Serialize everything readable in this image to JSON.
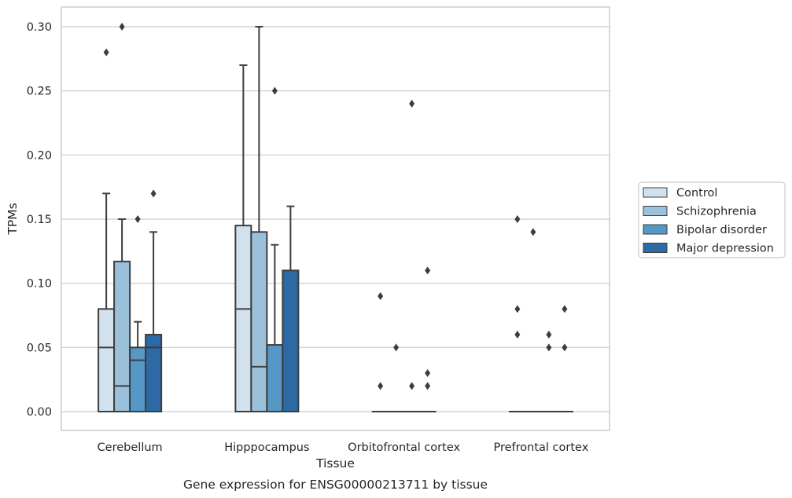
{
  "chart_data": {
    "type": "box",
    "title": "",
    "caption": "Gene expression for ENSG00000213711 by tissue",
    "xlabel": "Tissue",
    "ylabel": "TPMs",
    "ylim": [
      -0.015,
      0.315
    ],
    "yticks": [
      "0.00",
      "0.05",
      "0.10",
      "0.15",
      "0.20",
      "0.25",
      "0.30"
    ],
    "grid": true,
    "legend_position": "right",
    "categories": [
      "Cerebellum",
      "Hipppocampus",
      "Orbitofrontal cortex",
      "Prefrontal cortex"
    ],
    "series": [
      {
        "name": "Control",
        "color": "#d1e1ee",
        "boxes": [
          {
            "q1": 0.0,
            "median": 0.05,
            "q3": 0.08,
            "whisker_low": 0.0,
            "whisker_high": 0.17,
            "outliers": [
              0.28
            ]
          },
          {
            "q1": 0.0,
            "median": 0.08,
            "q3": 0.145,
            "whisker_low": 0.0,
            "whisker_high": 0.27,
            "outliers": []
          },
          {
            "q1": 0.0,
            "median": 0.0,
            "q3": 0.0,
            "whisker_low": 0.0,
            "whisker_high": 0.0,
            "outliers": [
              0.09,
              0.02
            ]
          },
          {
            "q1": 0.0,
            "median": 0.0,
            "q3": 0.0,
            "whisker_low": 0.0,
            "whisker_high": 0.0,
            "outliers": [
              0.15,
              0.08,
              0.06
            ]
          }
        ]
      },
      {
        "name": "Schizophrenia",
        "color": "#9bc1da",
        "boxes": [
          {
            "q1": 0.0,
            "median": 0.02,
            "q3": 0.117,
            "whisker_low": 0.0,
            "whisker_high": 0.15,
            "outliers": [
              0.3
            ]
          },
          {
            "q1": 0.0,
            "median": 0.035,
            "q3": 0.14,
            "whisker_low": 0.0,
            "whisker_high": 0.3,
            "outliers": []
          },
          {
            "q1": 0.0,
            "median": 0.0,
            "q3": 0.0,
            "whisker_low": 0.0,
            "whisker_high": 0.0,
            "outliers": [
              0.05
            ]
          },
          {
            "q1": 0.0,
            "median": 0.0,
            "q3": 0.0,
            "whisker_low": 0.0,
            "whisker_high": 0.0,
            "outliers": [
              0.14
            ]
          }
        ]
      },
      {
        "name": "Bipolar disorder",
        "color": "#5597c5",
        "boxes": [
          {
            "q1": 0.0,
            "median": 0.04,
            "q3": 0.05,
            "whisker_low": 0.0,
            "whisker_high": 0.07,
            "outliers": [
              0.15
            ]
          },
          {
            "q1": 0.0,
            "median": 0.0,
            "q3": 0.052,
            "whisker_low": 0.0,
            "whisker_high": 0.13,
            "outliers": [
              0.25
            ]
          },
          {
            "q1": 0.0,
            "median": 0.0,
            "q3": 0.0,
            "whisker_low": 0.0,
            "whisker_high": 0.0,
            "outliers": [
              0.24,
              0.02
            ]
          },
          {
            "q1": 0.0,
            "median": 0.0,
            "q3": 0.0,
            "whisker_low": 0.0,
            "whisker_high": 0.0,
            "outliers": [
              0.06,
              0.05
            ]
          }
        ]
      },
      {
        "name": "Major depression",
        "color": "#2d69a5",
        "boxes": [
          {
            "q1": 0.0,
            "median": 0.05,
            "q3": 0.06,
            "whisker_low": 0.0,
            "whisker_high": 0.14,
            "outliers": [
              0.17
            ]
          },
          {
            "q1": 0.0,
            "median": 0.0,
            "q3": 0.11,
            "whisker_low": 0.0,
            "whisker_high": 0.16,
            "outliers": []
          },
          {
            "q1": 0.0,
            "median": 0.0,
            "q3": 0.0,
            "whisker_low": 0.0,
            "whisker_high": 0.0,
            "outliers": [
              0.11,
              0.03,
              0.02
            ]
          },
          {
            "q1": 0.0,
            "median": 0.0,
            "q3": 0.0,
            "whisker_low": 0.0,
            "whisker_high": 0.0,
            "outliers": [
              0.08,
              0.05
            ]
          }
        ]
      }
    ]
  }
}
